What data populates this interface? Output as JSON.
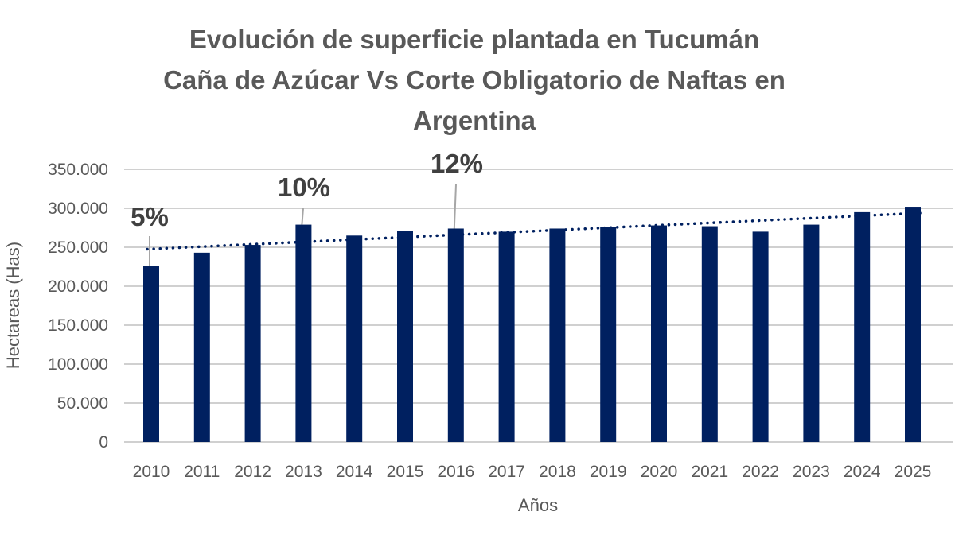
{
  "chart_data": {
    "type": "bar",
    "title_lines": [
      "Evolución de superficie plantada en Tucumán",
      "Caña de Azúcar Vs Corte Obligatorio de Naftas en",
      "Argentina"
    ],
    "xlabel": "Años",
    "ylabel": "Hectareas (Has)",
    "ylim": [
      0,
      350000
    ],
    "yticks": [
      0,
      50000,
      100000,
      150000,
      200000,
      250000,
      300000,
      350000
    ],
    "ytick_labels": [
      "0",
      "50.000",
      "100.000",
      "150.000",
      "200.000",
      "250.000",
      "300.000",
      "350.000"
    ],
    "grid": true,
    "categories": [
      "2010",
      "2011",
      "2012",
      "2013",
      "2014",
      "2015",
      "2016",
      "2017",
      "2018",
      "2019",
      "2020",
      "2021",
      "2022",
      "2023",
      "2024",
      "2025"
    ],
    "values": [
      225500,
      243000,
      253000,
      279000,
      265000,
      271000,
      274000,
      270000,
      274000,
      276000,
      278000,
      277000,
      270000,
      279000,
      295000,
      302000
    ],
    "bar_color": "#002060",
    "trendline": {
      "type": "linear",
      "style": "dotted",
      "color": "#002060",
      "start_value": 247500,
      "end_value": 294000
    },
    "annotations": [
      {
        "category": "2010",
        "text": "5%"
      },
      {
        "category": "2013",
        "text": "10%"
      },
      {
        "category": "2016",
        "text": "12%"
      }
    ]
  }
}
